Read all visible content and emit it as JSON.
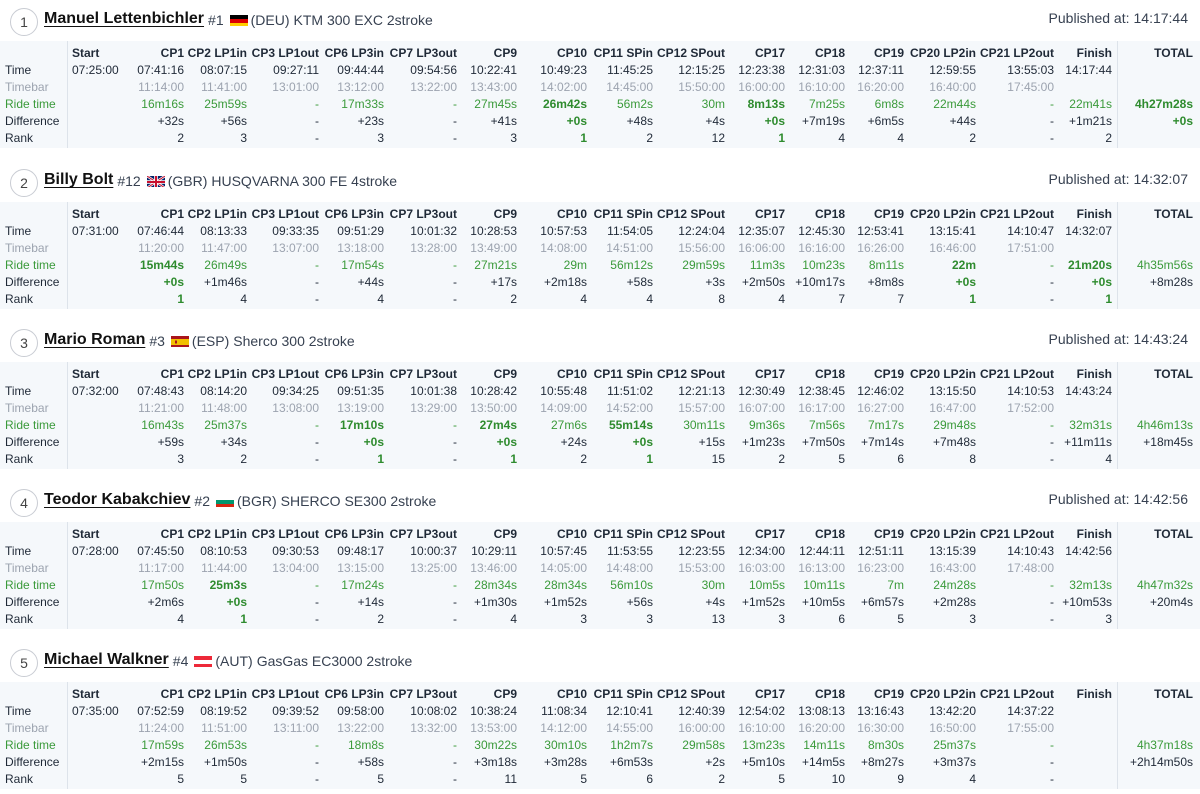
{
  "columns": [
    "Start",
    "CP1",
    "CP2 LP1in",
    "CP3 LP1out",
    "CP6 LP3in",
    "CP7 LP3out",
    "CP9",
    "CP10",
    "CP11 SPin",
    "CP12 SPout",
    "CP17",
    "CP18",
    "CP19",
    "CP20 LP2in",
    "CP21 LP2out",
    "Finish",
    "TOTAL"
  ],
  "row_labels": {
    "time": "Time",
    "timebar": "Timebar",
    "ride": "Ride time",
    "diff": "Difference",
    "rank": "Rank"
  },
  "published_prefix": "Published at:",
  "colors": {
    "ride_green": "#3a9a3a",
    "highlight_green": "#2e8b2e",
    "timebar_grey": "#9ca3af",
    "table_bg": "#f5f8fb"
  },
  "riders": [
    {
      "position": "1",
      "name": "Manuel Lettenbichler",
      "number": "#1",
      "country": "(DEU)",
      "flag": "flag-deu",
      "bike": "KTM 300 EXC 2stroke",
      "published": "14:17:44",
      "time": [
        "07:25:00",
        "07:41:16",
        "08:07:15",
        "09:27:11",
        "09:44:44",
        "09:54:56",
        "10:22:41",
        "10:49:23",
        "11:45:25",
        "12:15:25",
        "12:23:38",
        "12:31:03",
        "12:37:11",
        "12:59:55",
        "13:55:03",
        "14:17:44",
        ""
      ],
      "timebar": [
        "",
        "11:14:00",
        "11:41:00",
        "13:01:00",
        "13:12:00",
        "13:22:00",
        "13:43:00",
        "14:02:00",
        "14:45:00",
        "15:50:00",
        "16:00:00",
        "16:10:00",
        "16:20:00",
        "16:40:00",
        "17:45:00",
        "",
        ""
      ],
      "ride": [
        "",
        "16m16s",
        "25m59s",
        "-",
        "17m33s",
        "-",
        "27m45s",
        "26m42s",
        "56m2s",
        "30m",
        "8m13s",
        "7m25s",
        "6m8s",
        "22m44s",
        "-",
        "22m41s",
        "4h27m28s"
      ],
      "diff": [
        "",
        "+32s",
        "+56s",
        "-",
        "+23s",
        "-",
        "+41s",
        "+0s",
        "+48s",
        "+4s",
        "+0s",
        "+7m19s",
        "+6m5s",
        "+44s",
        "-",
        "+1m21s",
        "+0s"
      ],
      "rank": [
        "",
        "2",
        "3",
        "-",
        "3",
        "-",
        "3",
        "1",
        "2",
        "12",
        "1",
        "4",
        "4",
        "2",
        "-",
        "2",
        ""
      ],
      "bold": {
        "ride": [
          7,
          10,
          16
        ],
        "diff": [
          7,
          10,
          16
        ],
        "rank": [
          7,
          10
        ]
      }
    },
    {
      "position": "2",
      "name": "Billy Bolt",
      "number": "#12",
      "country": "(GBR)",
      "flag": "flag-gbr",
      "bike": "HUSQVARNA 300 FE 4stroke",
      "published": "14:32:07",
      "time": [
        "07:31:00",
        "07:46:44",
        "08:13:33",
        "09:33:35",
        "09:51:29",
        "10:01:32",
        "10:28:53",
        "10:57:53",
        "11:54:05",
        "12:24:04",
        "12:35:07",
        "12:45:30",
        "12:53:41",
        "13:15:41",
        "14:10:47",
        "14:32:07",
        ""
      ],
      "timebar": [
        "",
        "11:20:00",
        "11:47:00",
        "13:07:00",
        "13:18:00",
        "13:28:00",
        "13:49:00",
        "14:08:00",
        "14:51:00",
        "15:56:00",
        "16:06:00",
        "16:16:00",
        "16:26:00",
        "16:46:00",
        "17:51:00",
        "",
        ""
      ],
      "ride": [
        "",
        "15m44s",
        "26m49s",
        "-",
        "17m54s",
        "-",
        "27m21s",
        "29m",
        "56m12s",
        "29m59s",
        "11m3s",
        "10m23s",
        "8m11s",
        "22m",
        "-",
        "21m20s",
        "4h35m56s"
      ],
      "diff": [
        "",
        "+0s",
        "+1m46s",
        "-",
        "+44s",
        "-",
        "+17s",
        "+2m18s",
        "+58s",
        "+3s",
        "+2m50s",
        "+10m17s",
        "+8m8s",
        "+0s",
        "-",
        "+0s",
        "+8m28s"
      ],
      "rank": [
        "",
        "1",
        "4",
        "-",
        "4",
        "-",
        "2",
        "4",
        "4",
        "8",
        "4",
        "7",
        "7",
        "1",
        "-",
        "1",
        ""
      ],
      "bold": {
        "ride": [
          1,
          13,
          15
        ],
        "diff": [
          1,
          13,
          15
        ],
        "rank": [
          1,
          13,
          15
        ]
      }
    },
    {
      "position": "3",
      "name": "Mario Roman",
      "number": "#3",
      "country": "(ESP)",
      "flag": "flag-esp",
      "bike": "Sherco 300 2stroke",
      "published": "14:43:24",
      "time": [
        "07:32:00",
        "07:48:43",
        "08:14:20",
        "09:34:25",
        "09:51:35",
        "10:01:38",
        "10:28:42",
        "10:55:48",
        "11:51:02",
        "12:21:13",
        "12:30:49",
        "12:38:45",
        "12:46:02",
        "13:15:50",
        "14:10:53",
        "14:43:24",
        ""
      ],
      "timebar": [
        "",
        "11:21:00",
        "11:48:00",
        "13:08:00",
        "13:19:00",
        "13:29:00",
        "13:50:00",
        "14:09:00",
        "14:52:00",
        "15:57:00",
        "16:07:00",
        "16:17:00",
        "16:27:00",
        "16:47:00",
        "17:52:00",
        "",
        ""
      ],
      "ride": [
        "",
        "16m43s",
        "25m37s",
        "-",
        "17m10s",
        "-",
        "27m4s",
        "27m6s",
        "55m14s",
        "30m11s",
        "9m36s",
        "7m56s",
        "7m17s",
        "29m48s",
        "-",
        "32m31s",
        "4h46m13s"
      ],
      "diff": [
        "",
        "+59s",
        "+34s",
        "-",
        "+0s",
        "-",
        "+0s",
        "+24s",
        "+0s",
        "+15s",
        "+1m23s",
        "+7m50s",
        "+7m14s",
        "+7m48s",
        "-",
        "+11m11s",
        "+18m45s"
      ],
      "rank": [
        "",
        "3",
        "2",
        "-",
        "1",
        "-",
        "1",
        "2",
        "1",
        "15",
        "2",
        "5",
        "6",
        "8",
        "-",
        "4",
        ""
      ],
      "bold": {
        "ride": [
          4,
          6,
          8
        ],
        "diff": [
          4,
          6,
          8
        ],
        "rank": [
          4,
          6,
          8
        ]
      }
    },
    {
      "position": "4",
      "name": "Teodor Kabakchiev",
      "number": "#2",
      "country": "(BGR)",
      "flag": "flag-bgr",
      "bike": "SHERCO SE300 2stroke",
      "published": "14:42:56",
      "time": [
        "07:28:00",
        "07:45:50",
        "08:10:53",
        "09:30:53",
        "09:48:17",
        "10:00:37",
        "10:29:11",
        "10:57:45",
        "11:53:55",
        "12:23:55",
        "12:34:00",
        "12:44:11",
        "12:51:11",
        "13:15:39",
        "14:10:43",
        "14:42:56",
        ""
      ],
      "timebar": [
        "",
        "11:17:00",
        "11:44:00",
        "13:04:00",
        "13:15:00",
        "13:25:00",
        "13:46:00",
        "14:05:00",
        "14:48:00",
        "15:53:00",
        "16:03:00",
        "16:13:00",
        "16:23:00",
        "16:43:00",
        "17:48:00",
        "",
        ""
      ],
      "ride": [
        "",
        "17m50s",
        "25m3s",
        "-",
        "17m24s",
        "-",
        "28m34s",
        "28m34s",
        "56m10s",
        "30m",
        "10m5s",
        "10m11s",
        "7m",
        "24m28s",
        "-",
        "32m13s",
        "4h47m32s"
      ],
      "diff": [
        "",
        "+2m6s",
        "+0s",
        "-",
        "+14s",
        "-",
        "+1m30s",
        "+1m52s",
        "+56s",
        "+4s",
        "+1m52s",
        "+10m5s",
        "+6m57s",
        "+2m28s",
        "-",
        "+10m53s",
        "+20m4s"
      ],
      "rank": [
        "",
        "4",
        "1",
        "-",
        "2",
        "-",
        "4",
        "3",
        "3",
        "13",
        "3",
        "6",
        "5",
        "3",
        "-",
        "3",
        ""
      ],
      "bold": {
        "ride": [
          2
        ],
        "diff": [
          2
        ],
        "rank": [
          2
        ]
      }
    },
    {
      "position": "5",
      "name": "Michael Walkner",
      "number": "#4",
      "country": "(AUT)",
      "flag": "flag-aut",
      "bike": "GasGas EC3000 2stroke",
      "published": "",
      "time": [
        "07:35:00",
        "07:52:59",
        "08:19:52",
        "09:39:52",
        "09:58:00",
        "10:08:02",
        "10:38:24",
        "11:08:34",
        "12:10:41",
        "12:40:39",
        "12:54:02",
        "13:08:13",
        "13:16:43",
        "13:42:20",
        "14:37:22",
        "",
        ""
      ],
      "timebar": [
        "",
        "11:24:00",
        "11:51:00",
        "13:11:00",
        "13:22:00",
        "13:32:00",
        "13:53:00",
        "14:12:00",
        "14:55:00",
        "16:00:00",
        "16:10:00",
        "16:20:00",
        "16:30:00",
        "16:50:00",
        "17:55:00",
        "",
        ""
      ],
      "ride": [
        "",
        "17m59s",
        "26m53s",
        "-",
        "18m8s",
        "-",
        "30m22s",
        "30m10s",
        "1h2m7s",
        "29m58s",
        "13m23s",
        "14m11s",
        "8m30s",
        "25m37s",
        "-",
        "",
        "4h37m18s"
      ],
      "diff": [
        "",
        "+2m15s",
        "+1m50s",
        "-",
        "+58s",
        "-",
        "+3m18s",
        "+3m28s",
        "+6m53s",
        "+2s",
        "+5m10s",
        "+14m5s",
        "+8m27s",
        "+3m37s",
        "-",
        "",
        "+2h14m50s"
      ],
      "rank": [
        "",
        "5",
        "5",
        "-",
        "5",
        "-",
        "11",
        "5",
        "6",
        "2",
        "5",
        "10",
        "9",
        "4",
        "-",
        "",
        ""
      ],
      "bold": {
        "ride": [],
        "diff": [],
        "rank": []
      }
    }
  ]
}
